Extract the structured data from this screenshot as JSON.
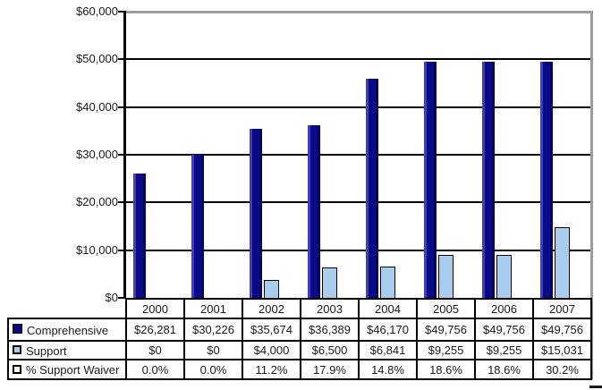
{
  "chart_data": {
    "type": "bar",
    "title": "",
    "xlabel": "",
    "ylabel": "",
    "categories": [
      "2000",
      "2001",
      "2002",
      "2003",
      "2004",
      "2005",
      "2006",
      "2007"
    ],
    "series": [
      {
        "name": "Comprehensive",
        "values": [
          26281,
          30226,
          35674,
          36389,
          46170,
          49756,
          49756,
          49756
        ]
      },
      {
        "name": "Support",
        "values": [
          0,
          0,
          4000,
          6500,
          6841,
          9255,
          9255,
          15031
        ]
      },
      {
        "name": "% Support Waiver",
        "values": [
          0.0,
          0.0,
          11.2,
          17.9,
          14.8,
          18.6,
          18.6,
          30.2
        ]
      }
    ],
    "ylim": [
      0,
      60000
    ],
    "ytick_step": 10000,
    "ytick_labels": [
      "$0",
      "$10,000",
      "$20,000",
      "$30,000",
      "$40,000",
      "$50,000",
      "$60,000"
    ],
    "grid": true,
    "legend_position": "table-left"
  },
  "table": {
    "rows": [
      {
        "cells": [
          "$26,281",
          "$30,226",
          "$35,674",
          "$36,389",
          "$46,170",
          "$49,756",
          "$49,756",
          "$49,756"
        ]
      },
      {
        "cells": [
          "$0",
          "$0",
          "$4,000",
          "$6,500",
          "$6,841",
          "$9,255",
          "$9,255",
          "$15,031"
        ]
      },
      {
        "cells": [
          "0.0%",
          "0.0%",
          "11.2%",
          "17.9%",
          "14.8%",
          "18.6%",
          "18.6%",
          "30.2%"
        ]
      }
    ]
  },
  "colors": {
    "bar_navy": "#0a0a84",
    "bar_navy_highlight": "#3d3dc0",
    "bar_navy_shade": "#050560",
    "bar_lightblue": "#a9cdef",
    "swatch_waiver": "#fffff0",
    "grid_black": "#000000",
    "grid_gray": "#9c9c9c",
    "text": "#1a1a1a"
  }
}
